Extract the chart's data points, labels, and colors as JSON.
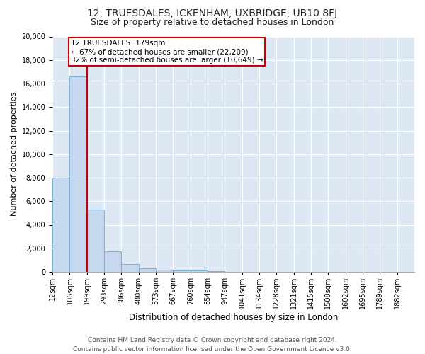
{
  "title": "12, TRUESDALES, ICKENHAM, UXBRIDGE, UB10 8FJ",
  "subtitle": "Size of property relative to detached houses in London",
  "xlabel": "Distribution of detached houses by size in London",
  "ylabel": "Number of detached properties",
  "bin_labels": [
    "12sqm",
    "106sqm",
    "199sqm",
    "293sqm",
    "386sqm",
    "480sqm",
    "573sqm",
    "667sqm",
    "760sqm",
    "854sqm",
    "947sqm",
    "1041sqm",
    "1134sqm",
    "1228sqm",
    "1321sqm",
    "1415sqm",
    "1508sqm",
    "1602sqm",
    "1695sqm",
    "1789sqm",
    "1882sqm"
  ],
  "bar_heights": [
    8000,
    16600,
    5300,
    1750,
    650,
    300,
    200,
    150,
    100,
    40,
    20,
    15,
    10,
    8,
    5,
    4,
    3,
    2,
    2,
    1,
    0
  ],
  "bar_color": "#c5d8ef",
  "bar_edge_color": "#6aaad4",
  "property_sqm": 179,
  "annotation_text": "12 TRUESDALES: 179sqm\n← 67% of detached houses are smaller (22,209)\n32% of semi-detached houses are larger (10,649) →",
  "annotation_box_color": "#ffffff",
  "annotation_box_edge_color": "#cc0000",
  "red_line_color": "#cc0000",
  "footer_line1": "Contains HM Land Registry data © Crown copyright and database right 2024.",
  "footer_line2": "Contains public sector information licensed under the Open Government Licence v3.0.",
  "ylim": [
    0,
    20000
  ],
  "yticks": [
    0,
    2000,
    4000,
    6000,
    8000,
    10000,
    12000,
    14000,
    16000,
    18000,
    20000
  ],
  "title_fontsize": 10,
  "subtitle_fontsize": 9,
  "xlabel_fontsize": 8.5,
  "ylabel_fontsize": 8,
  "tick_fontsize": 7,
  "annotation_fontsize": 7.5,
  "footer_fontsize": 6.5,
  "background_color": "#ffffff",
  "plot_bg_color": "#dde8f4"
}
